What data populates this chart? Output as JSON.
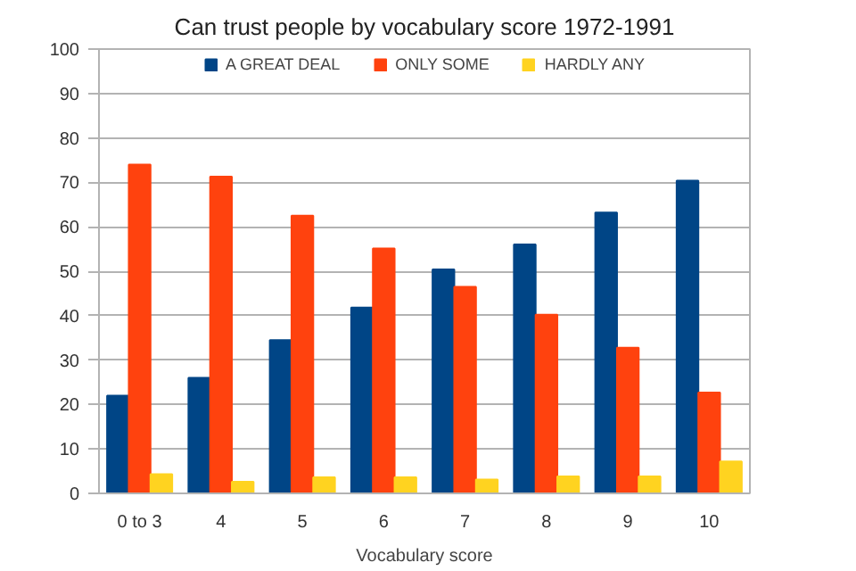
{
  "chart_data": {
    "type": "bar",
    "title": "Can trust people by vocabulary score 1972-1991",
    "xlabel": "Vocabulary score",
    "categories": [
      "0 to 3",
      "4",
      "5",
      "6",
      "7",
      "8",
      "9",
      "10"
    ],
    "series": [
      {
        "name": "A GREAT DEAL",
        "color": "#004586",
        "values": [
          22,
          26,
          34.5,
          41.8,
          50.4,
          56,
          63.2,
          70.4
        ]
      },
      {
        "name": "ONLY SOME",
        "color": "#ff420e",
        "values": [
          74,
          71.3,
          62.5,
          55.1,
          46.5,
          40.2,
          32.8,
          22.7
        ]
      },
      {
        "name": "HARDLY ANY",
        "color": "#ffd320",
        "values": [
          4.3,
          2.6,
          3.6,
          3.6,
          3.1,
          3.8,
          3.8,
          7.2
        ]
      }
    ],
    "ylim": [
      0,
      100
    ],
    "yticks": [
      0,
      10,
      20,
      30,
      40,
      50,
      60,
      70,
      80,
      90,
      100
    ],
    "grid": "y",
    "legend": "top"
  }
}
